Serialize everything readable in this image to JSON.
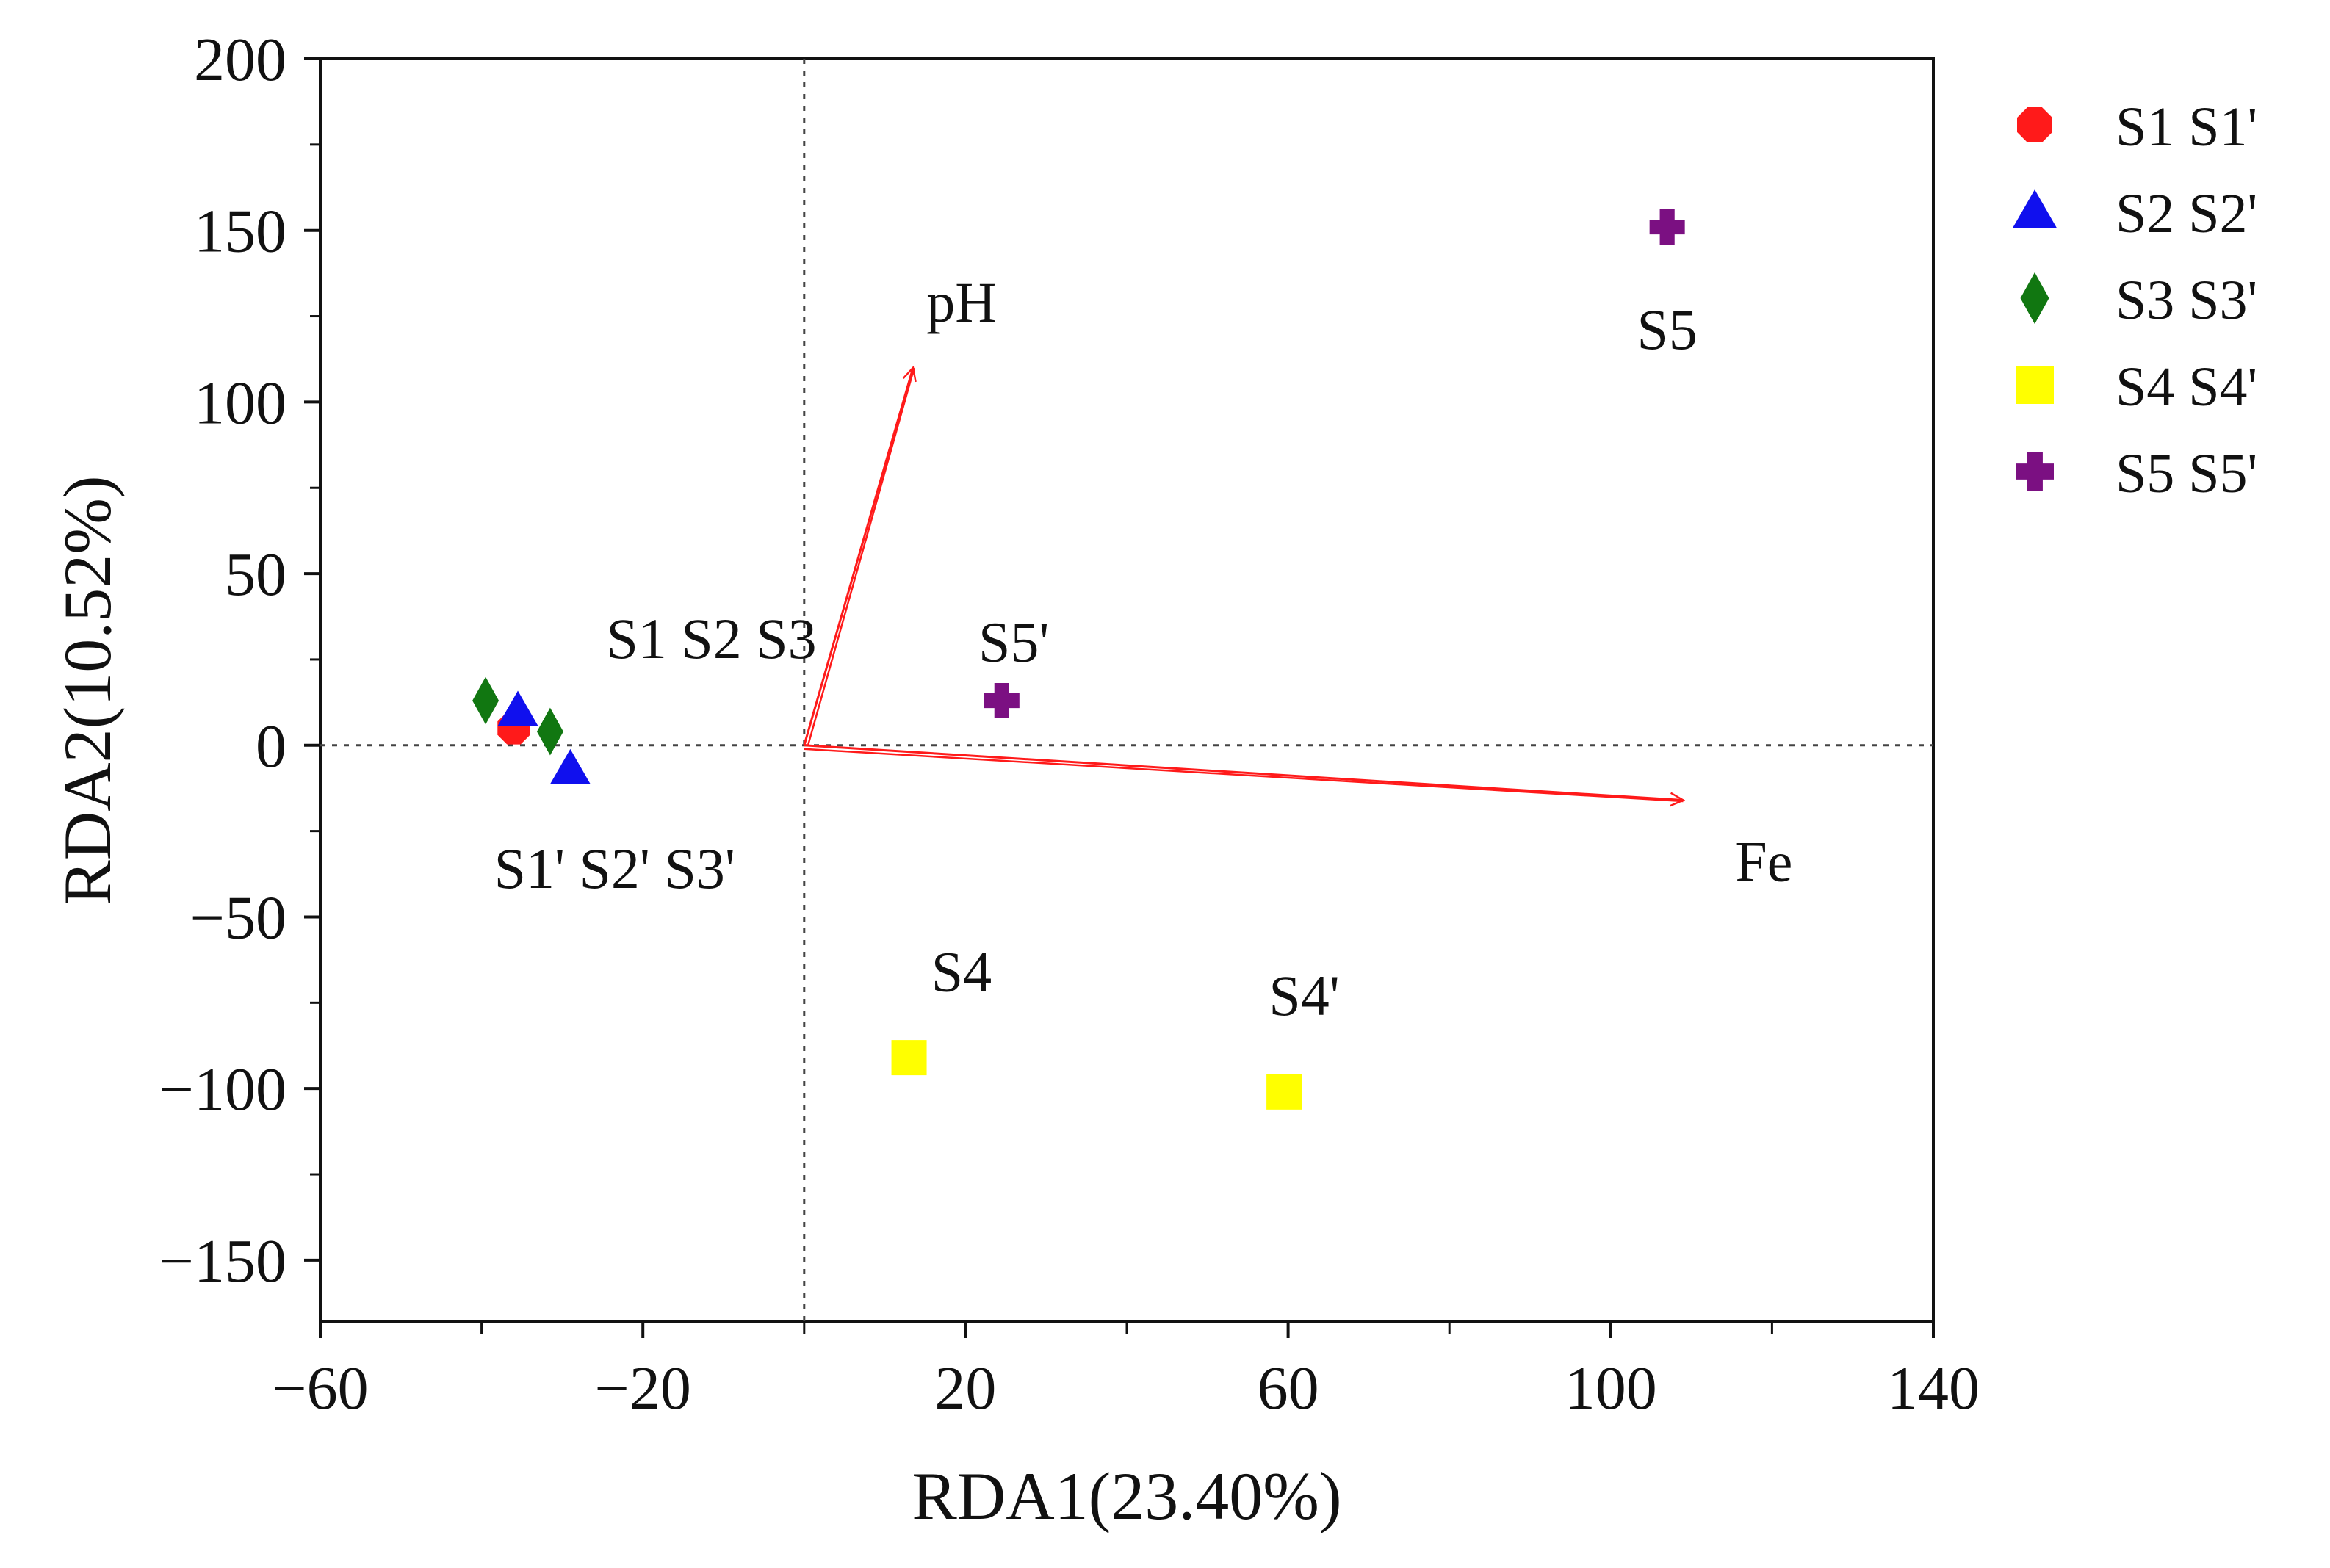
{
  "chart_data": {
    "type": "scatter",
    "subtype": "RDA biplot",
    "xlabel": "RDA1(23.40%)",
    "ylabel": "RDA2(10.52%)",
    "xlim": [
      -60,
      140
    ],
    "ylim": [
      -168,
      200
    ],
    "xticks": [
      -60,
      -20,
      20,
      60,
      100,
      140
    ],
    "xticks_minor": [
      -40,
      0,
      40,
      80,
      120
    ],
    "xtick_labels": [
      "−60",
      "−20",
      "20",
      "60",
      "100",
      "140"
    ],
    "yticks": [
      -150,
      -100,
      -50,
      0,
      50,
      100,
      150,
      200
    ],
    "ytick_labels": [
      "−150",
      "−100",
      "−50",
      "0",
      "50",
      "100",
      "150",
      "200"
    ],
    "grid": false,
    "reference_lines": {
      "x": 0,
      "y": 0,
      "style": "dotted"
    },
    "legend_position": "outside-top-right",
    "series": [
      {
        "name": "S1 S1'",
        "marker": "circle",
        "color": "#ff1a1a",
        "points": [
          {
            "x": -36,
            "y": 5
          }
        ]
      },
      {
        "name": "S2 S2'",
        "marker": "triangle",
        "color": "#1010ee",
        "points": [
          {
            "x": -35.5,
            "y": 10
          },
          {
            "x": -29,
            "y": -7
          }
        ]
      },
      {
        "name": "S3 S3'",
        "marker": "diamond",
        "color": "#117711",
        "points": [
          {
            "x": -39.5,
            "y": 13
          },
          {
            "x": -31.5,
            "y": 4
          }
        ]
      },
      {
        "name": "S4 S4'",
        "marker": "square",
        "color": "#ffff00",
        "points": [
          {
            "x": 13,
            "y": -91
          },
          {
            "x": 59.5,
            "y": -101
          }
        ]
      },
      {
        "name": "S5 S5'",
        "marker": "cross",
        "color": "#7b1082",
        "points": [
          {
            "x": 107,
            "y": 151
          },
          {
            "x": 24.5,
            "y": 13
          }
        ]
      }
    ],
    "vectors": [
      {
        "name": "pH",
        "x0": 0,
        "y0": 0,
        "x1": 13.5,
        "y1": 110,
        "color": "#ff1a1a"
      },
      {
        "name": "Fe",
        "x0": 0,
        "y0": 0,
        "x1": 109,
        "y1": -16,
        "color": "#ff1a1a"
      }
    ],
    "annotations": [
      {
        "text": "S1  S2  S3",
        "x": -11.5,
        "y": 31
      },
      {
        "text": "S1' S2' S3'",
        "x": -23.5,
        "y": -36
      },
      {
        "text": "S4",
        "x": 19.5,
        "y": -66
      },
      {
        "text": "S4'",
        "x": 62,
        "y": -73
      },
      {
        "text": "S5",
        "x": 107,
        "y": 121
      },
      {
        "text": "S5'",
        "x": 26,
        "y": 30
      },
      {
        "text": "pH",
        "x": 19.5,
        "y": 129
      },
      {
        "text": "Fe",
        "x": 119,
        "y": -34
      }
    ]
  }
}
